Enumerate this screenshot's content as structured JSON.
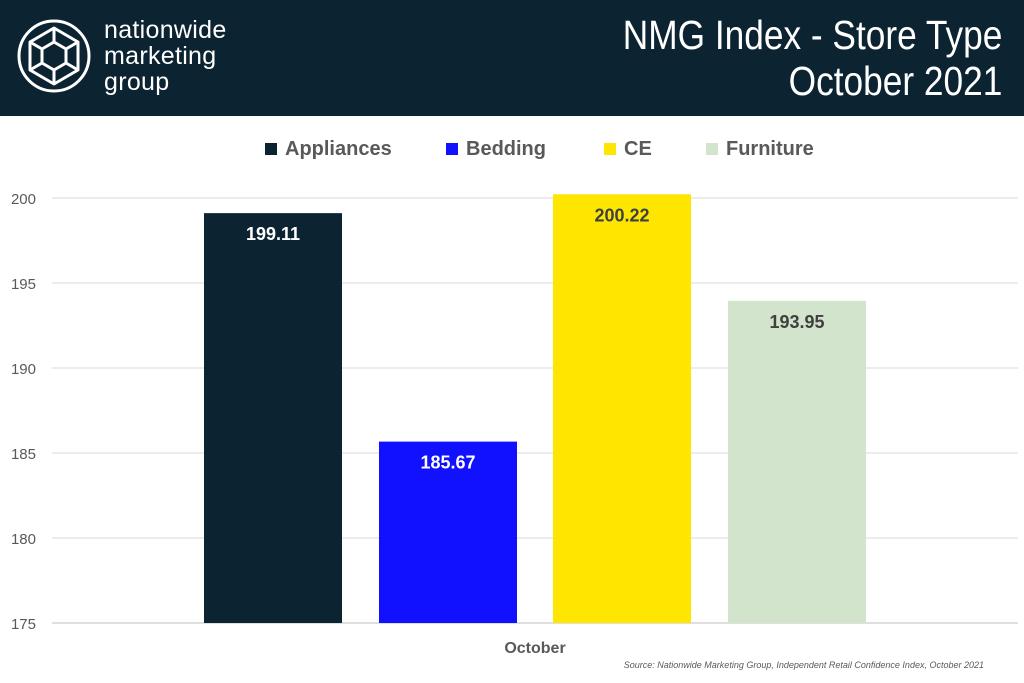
{
  "brand": {
    "line1": "nationwide",
    "line2": "marketing",
    "line3": "group"
  },
  "header": {
    "title_line1": "NMG Index - Store Type",
    "title_line2": "October 2021",
    "background": "#0c2431"
  },
  "chart_data": {
    "type": "bar",
    "title": "NMG Index - Store Type October 2021",
    "categories": [
      "October"
    ],
    "series": [
      {
        "name": "Appliances",
        "values": [
          199.11
        ],
        "color": "#0c2431",
        "label_color": "#ffffff"
      },
      {
        "name": "Bedding",
        "values": [
          185.67
        ],
        "color": "#1111ff",
        "label_color": "#ffffff"
      },
      {
        "name": "CE",
        "values": [
          200.22
        ],
        "color": "#ffe600",
        "label_color": "#404040"
      },
      {
        "name": "Furniture",
        "values": [
          193.95
        ],
        "color": "#d3e4cc",
        "label_color": "#404040"
      }
    ],
    "xlabel": "October",
    "ylabel": "",
    "ylim": [
      175,
      200
    ],
    "yticks": [
      175,
      180,
      185,
      190,
      195,
      200
    ],
    "grid": true,
    "legend": "top"
  },
  "source": "Source: Nationwide Marketing Group, Independent Retail Confidence Index, October 2021"
}
